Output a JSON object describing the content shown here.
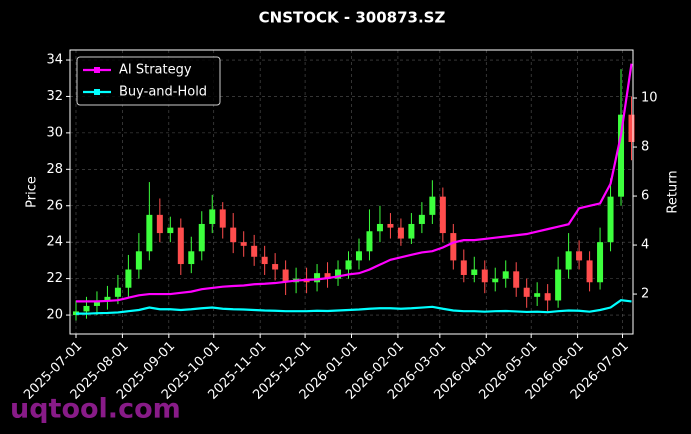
{
  "chart_data": {
    "type": "candlestick",
    "title": "CNSTOCK - 300873.SZ",
    "ylabel": "Price",
    "y2label": "Return",
    "watermark": "uqtool.com",
    "x": [
      "2025-07-01",
      "2025-07-08",
      "2025-07-15",
      "2025-07-22",
      "2025-07-29",
      "2025-08-05",
      "2025-08-12",
      "2025-08-19",
      "2025-08-26",
      "2025-09-02",
      "2025-09-09",
      "2025-09-16",
      "2025-09-23",
      "2025-09-30",
      "2025-10-07",
      "2025-10-14",
      "2025-10-21",
      "2025-10-28",
      "2025-11-04",
      "2025-11-11",
      "2025-11-18",
      "2025-11-25",
      "2025-12-02",
      "2025-12-09",
      "2025-12-16",
      "2025-12-23",
      "2025-12-30",
      "2026-01-06",
      "2026-01-13",
      "2026-01-20",
      "2026-01-27",
      "2026-02-03",
      "2026-02-10",
      "2026-02-17",
      "2026-02-24",
      "2026-03-03",
      "2026-03-10",
      "2026-03-17",
      "2026-03-24",
      "2026-03-31",
      "2026-04-07",
      "2026-04-14",
      "2026-04-21",
      "2026-04-28",
      "2026-05-05",
      "2026-05-12",
      "2026-05-19",
      "2026-05-26",
      "2026-06-02",
      "2026-06-09",
      "2026-06-16",
      "2026-06-23",
      "2026-06-30",
      "2026-07-07"
    ],
    "open": [
      20.0,
      20.2,
      20.5,
      20.8,
      21.0,
      21.5,
      22.5,
      23.5,
      25.5,
      24.5,
      24.8,
      22.8,
      23.5,
      25.0,
      25.8,
      24.8,
      24.0,
      23.8,
      23.2,
      22.8,
      22.5,
      21.8,
      22.0,
      21.8,
      22.3,
      22.0,
      22.5,
      23.0,
      23.5,
      24.6,
      25.0,
      24.8,
      24.2,
      25.0,
      25.5,
      26.5,
      24.5,
      23.0,
      22.2,
      22.5,
      21.8,
      22.0,
      22.4,
      21.5,
      21.0,
      21.2,
      20.8,
      22.5,
      23.5,
      23.0,
      21.8,
      24.0,
      26.5,
      31.0
    ],
    "high": [
      20.8,
      21.0,
      21.3,
      21.6,
      22.2,
      23.3,
      24.5,
      27.3,
      26.4,
      25.4,
      25.3,
      24.3,
      25.7,
      26.6,
      26.2,
      25.6,
      24.6,
      24.4,
      23.8,
      23.4,
      23.0,
      22.6,
      22.6,
      22.8,
      22.9,
      23.0,
      23.5,
      24.2,
      25.8,
      26.0,
      25.6,
      25.3,
      25.6,
      26.2,
      27.4,
      27.0,
      25.0,
      23.6,
      23.2,
      23.0,
      22.6,
      23.0,
      22.9,
      22.0,
      21.8,
      21.7,
      23.2,
      24.5,
      24.1,
      23.5,
      24.8,
      27.5,
      33.5,
      32.0
    ],
    "low": [
      19.7,
      19.8,
      20.0,
      20.3,
      20.6,
      21.0,
      22.0,
      23.0,
      24.0,
      24.0,
      22.2,
      22.3,
      23.0,
      24.5,
      24.2,
      23.4,
      23.2,
      22.7,
      22.2,
      21.9,
      21.1,
      21.2,
      21.2,
      21.3,
      21.5,
      21.6,
      22.0,
      22.5,
      23.0,
      24.0,
      24.2,
      23.8,
      23.9,
      24.5,
      25.0,
      24.0,
      22.5,
      21.8,
      21.8,
      21.2,
      21.3,
      21.5,
      21.0,
      20.4,
      20.5,
      20.2,
      20.4,
      22.0,
      22.5,
      21.3,
      21.4,
      23.5,
      26.0,
      28.5
    ],
    "close": [
      20.2,
      20.5,
      20.8,
      21.0,
      21.5,
      22.5,
      23.5,
      25.5,
      24.5,
      24.8,
      22.8,
      23.5,
      25.0,
      25.8,
      24.8,
      24.0,
      23.8,
      23.2,
      22.8,
      22.5,
      21.8,
      22.0,
      21.8,
      22.3,
      22.0,
      22.5,
      23.0,
      23.5,
      24.6,
      25.0,
      24.8,
      24.2,
      25.0,
      25.5,
      26.5,
      24.5,
      23.0,
      22.2,
      22.5,
      21.8,
      22.0,
      22.4,
      21.5,
      21.0,
      21.2,
      20.8,
      22.5,
      23.5,
      23.0,
      21.8,
      24.0,
      26.5,
      31.0,
      29.5
    ],
    "up_color": "#3dff3d",
    "down_color": "#ff4d4d",
    "series": [
      {
        "name": "AI Strategy",
        "color": "#ff00ff",
        "axis": "y2",
        "values": [
          1.7,
          1.7,
          1.7,
          1.72,
          1.75,
          1.85,
          1.95,
          2.0,
          2.0,
          2.0,
          2.05,
          2.1,
          2.2,
          2.25,
          2.3,
          2.33,
          2.35,
          2.4,
          2.42,
          2.45,
          2.5,
          2.55,
          2.58,
          2.6,
          2.65,
          2.72,
          2.8,
          2.85,
          3.0,
          3.2,
          3.4,
          3.5,
          3.6,
          3.7,
          3.75,
          3.9,
          4.1,
          4.2,
          4.2,
          4.25,
          4.3,
          4.35,
          4.4,
          4.45,
          4.55,
          4.65,
          4.75,
          4.85,
          5.5,
          5.6,
          5.7,
          6.5,
          8.5,
          11.4
        ]
      },
      {
        "name": "Buy-and-Hold",
        "color": "#00ffff",
        "axis": "y2",
        "values": [
          1.2,
          1.2,
          1.22,
          1.23,
          1.25,
          1.3,
          1.35,
          1.45,
          1.38,
          1.38,
          1.35,
          1.38,
          1.42,
          1.45,
          1.4,
          1.38,
          1.37,
          1.35,
          1.33,
          1.32,
          1.3,
          1.3,
          1.3,
          1.32,
          1.31,
          1.33,
          1.35,
          1.37,
          1.4,
          1.42,
          1.42,
          1.4,
          1.42,
          1.45,
          1.48,
          1.4,
          1.33,
          1.3,
          1.3,
          1.28,
          1.3,
          1.31,
          1.29,
          1.27,
          1.28,
          1.26,
          1.3,
          1.33,
          1.32,
          1.28,
          1.35,
          1.45,
          1.75,
          1.7
        ]
      }
    ],
    "xlim": [
      "2025-06-27",
      "2026-07-08"
    ],
    "xticks": [
      "2025-07-01",
      "2025-08-01",
      "2025-09-01",
      "2025-10-01",
      "2025-11-01",
      "2025-12-01",
      "2026-01-01",
      "2026-02-01",
      "2026-03-01",
      "2026-04-01",
      "2026-05-01",
      "2026-06-01",
      "2026-07-01"
    ],
    "ylim": [
      18.96,
      34.55
    ],
    "yticks": [
      20,
      22,
      24,
      26,
      28,
      30,
      32,
      34
    ],
    "y2lim": [
      0.37,
      11.96
    ],
    "y2ticks": [
      2,
      4,
      6,
      8,
      10
    ],
    "grid": true,
    "legend": "upper left"
  }
}
